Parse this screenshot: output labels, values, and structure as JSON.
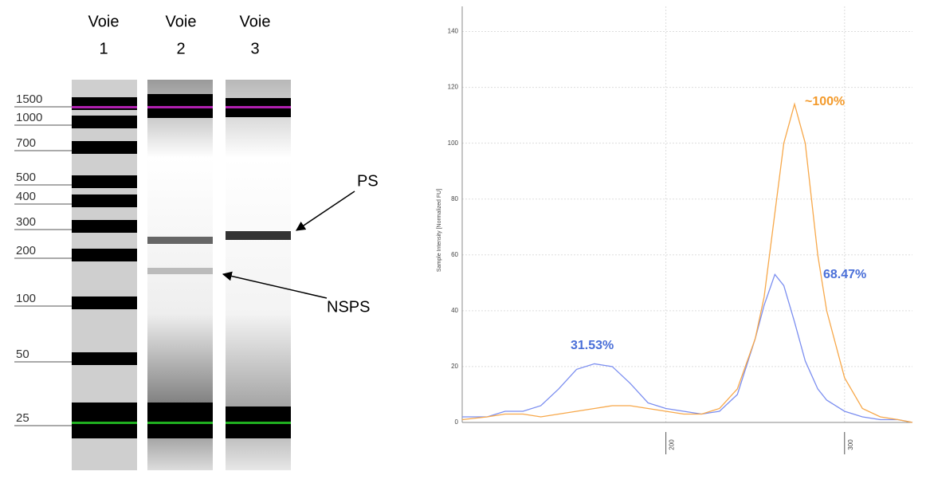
{
  "gel": {
    "lanes": [
      {
        "title": "Voie",
        "number": "1"
      },
      {
        "title": "Voie",
        "number": "2"
      },
      {
        "title": "Voie",
        "number": "3"
      }
    ],
    "ladder": [
      "1500",
      "1000",
      "700",
      "500",
      "400",
      "300",
      "200",
      "100",
      "50",
      "25"
    ],
    "annotations": [
      "PS",
      "NSPS"
    ]
  },
  "chart_data": {
    "type": "line",
    "y_label": "Sample Intensity [Normalized FU]",
    "x": [
      86,
      100,
      110,
      120,
      130,
      140,
      150,
      160,
      170,
      180,
      190,
      200,
      210,
      220,
      230,
      240,
      250,
      255,
      261,
      266,
      272,
      278,
      285,
      290,
      300,
      310,
      320,
      330,
      338
    ],
    "series": [
      {
        "color": "#7b8ef0",
        "values": [
          2,
          2,
          4,
          4,
          6,
          12,
          19,
          21,
          20,
          14,
          7,
          5,
          4,
          3,
          4,
          10,
          30,
          42,
          53,
          49,
          36,
          22,
          12,
          8,
          4,
          2,
          1,
          1,
          0
        ]
      },
      {
        "color": "#f7a84a",
        "values": [
          1,
          2,
          3,
          3,
          2,
          3,
          4,
          5,
          6,
          6,
          5,
          4,
          3,
          3,
          5,
          12,
          30,
          45,
          75,
          100,
          114,
          100,
          60,
          40,
          16,
          5,
          2,
          1,
          0
        ]
      }
    ],
    "xlim": [
      86,
      338
    ],
    "ylim": [
      0,
      149
    ],
    "xticks": [
      200,
      300
    ],
    "yticks": [
      0,
      20,
      40,
      60,
      80,
      100,
      120,
      140
    ],
    "grid": true,
    "annotations": [
      {
        "text": "~100%",
        "color": "#f39a2b"
      },
      {
        "text": "68.47%",
        "color": "#4a6fd8"
      },
      {
        "text": "31.53%",
        "color": "#4a6fd8"
      }
    ]
  }
}
